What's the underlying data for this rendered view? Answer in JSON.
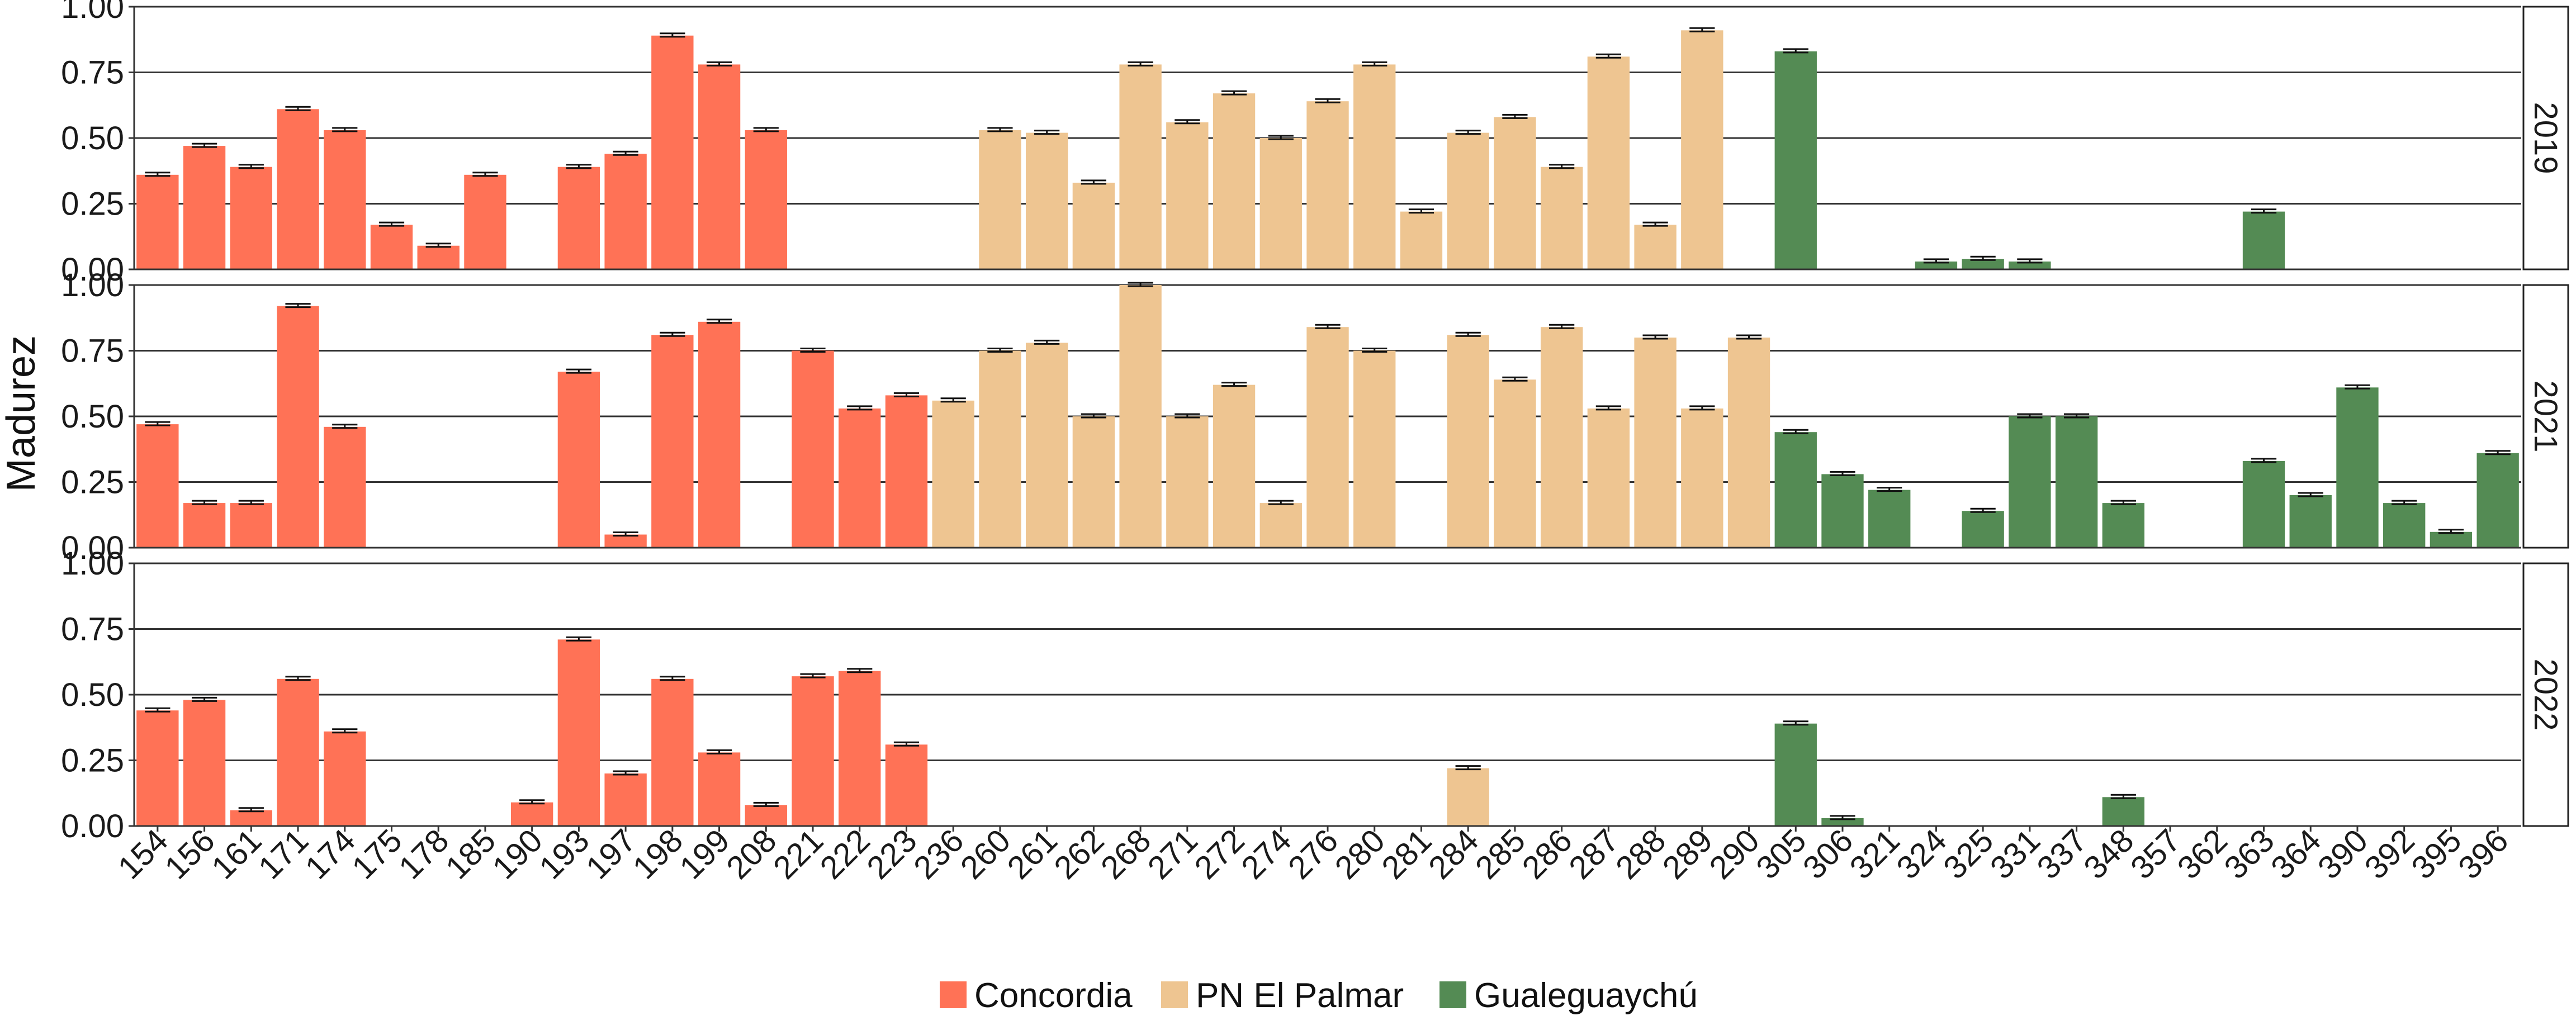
{
  "chart_data": {
    "type": "bar",
    "ylabel": "Madurez",
    "xlabel": "",
    "ylim": [
      0,
      1
    ],
    "y_ticks": [
      "0.00",
      "0.25",
      "0.50",
      "0.75",
      "1.00"
    ],
    "categories": [
      "154",
      "156",
      "161",
      "171",
      "174",
      "175",
      "178",
      "185",
      "190",
      "193",
      "197",
      "198",
      "199",
      "208",
      "221",
      "222",
      "223",
      "236",
      "260",
      "261",
      "262",
      "268",
      "271",
      "272",
      "274",
      "276",
      "280",
      "281",
      "284",
      "285",
      "286",
      "287",
      "288",
      "289",
      "290",
      "305",
      "306",
      "321",
      "324",
      "325",
      "331",
      "337",
      "348",
      "357",
      "362",
      "363",
      "364",
      "390",
      "392",
      "395",
      "396"
    ],
    "groups": [
      {
        "name": "Concordia",
        "color": "#FF7256",
        "categories": [
          "154",
          "156",
          "161",
          "171",
          "174",
          "175",
          "178",
          "185",
          "190",
          "193",
          "197",
          "198",
          "199",
          "208",
          "221",
          "222",
          "223"
        ]
      },
      {
        "name": "PN El Palmar",
        "color": "#EEC591",
        "categories": [
          "236",
          "260",
          "261",
          "262",
          "268",
          "271",
          "272",
          "274",
          "276",
          "280",
          "281",
          "284",
          "285",
          "286",
          "287",
          "288",
          "289",
          "290"
        ]
      },
      {
        "name": "Gualeguaychú",
        "color": "#548B54",
        "categories": [
          "305",
          "306",
          "321",
          "324",
          "325",
          "331",
          "337",
          "348",
          "357",
          "362",
          "363",
          "364",
          "390",
          "392",
          "395",
          "396"
        ]
      }
    ],
    "facets": [
      {
        "label": "2019",
        "values": [
          0.36,
          0.47,
          0.39,
          0.61,
          0.53,
          0.17,
          0.09,
          0.36,
          null,
          0.39,
          0.44,
          0.89,
          0.78,
          0.53,
          null,
          null,
          null,
          null,
          0.53,
          0.52,
          0.33,
          0.78,
          0.56,
          0.67,
          0.5,
          0.64,
          0.78,
          0.22,
          0.52,
          0.58,
          0.39,
          0.81,
          0.17,
          0.91,
          null,
          0.83,
          null,
          null,
          0.03,
          0.04,
          0.03,
          null,
          null,
          null,
          null,
          0.22,
          null,
          null,
          null,
          null,
          null
        ]
      },
      {
        "label": "2021",
        "values": [
          0.47,
          0.17,
          0.17,
          0.92,
          0.46,
          null,
          null,
          null,
          null,
          0.67,
          0.05,
          0.81,
          0.86,
          null,
          0.75,
          0.53,
          0.58,
          0.56,
          0.75,
          0.78,
          0.5,
          1.0,
          0.5,
          0.62,
          0.17,
          0.84,
          0.75,
          null,
          0.81,
          0.64,
          0.84,
          0.53,
          0.8,
          0.53,
          0.8,
          0.44,
          0.28,
          0.22,
          null,
          0.14,
          0.5,
          0.5,
          0.17,
          null,
          null,
          0.33,
          0.2,
          0.61,
          0.17,
          0.06,
          0.36
        ]
      },
      {
        "label": "2022",
        "values": [
          0.44,
          0.48,
          0.06,
          0.56,
          0.36,
          null,
          null,
          null,
          0.09,
          0.71,
          0.2,
          0.56,
          0.28,
          0.08,
          0.57,
          0.59,
          0.31,
          null,
          null,
          null,
          null,
          null,
          null,
          null,
          null,
          null,
          null,
          null,
          0.22,
          null,
          null,
          null,
          null,
          null,
          null,
          0.39,
          0.03,
          null,
          null,
          null,
          null,
          null,
          0.11,
          null,
          null,
          null,
          null,
          null,
          null,
          null,
          null
        ]
      }
    ],
    "legend": {
      "position": "bottom",
      "entries": [
        "Concordia",
        "PN El Palmar",
        "Gualeguaychú"
      ]
    },
    "grid": true,
    "error_bars": true
  }
}
